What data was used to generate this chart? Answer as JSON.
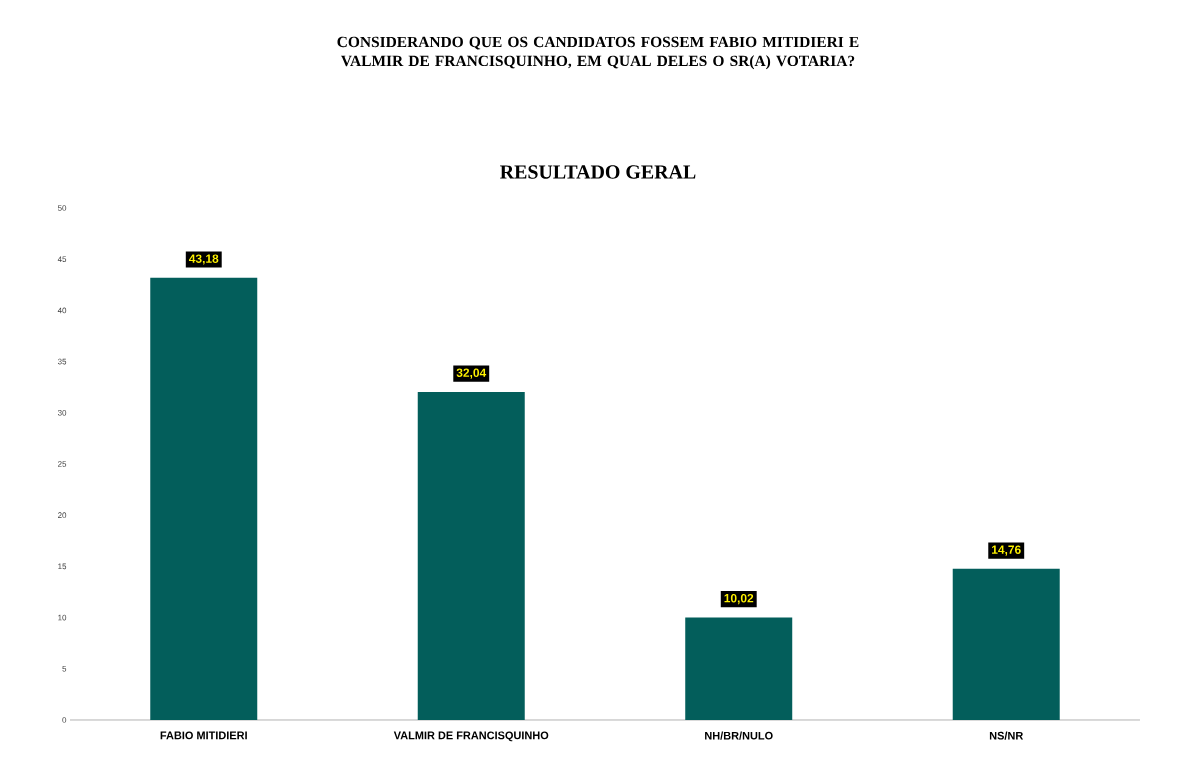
{
  "chart_data": {
    "type": "bar",
    "title": "CONSIDERANDO QUE OS CANDIDATOS FOSSEM FABIO MITIDIERI E VALMIR DE FRANCISQUINHO, EM QUAL DELES O SR(A) VOTARIA?",
    "subtitle": "RESULTADO GERAL",
    "categories": [
      "FABIO MITIDIERI",
      "VALMIR DE FRANCISQUINHO",
      "NH/BR/NULO",
      "NS/NR"
    ],
    "values": [
      43.18,
      32.04,
      10.02,
      14.76
    ],
    "value_labels": [
      "43,18",
      "32,04",
      "10,02",
      "14,76"
    ],
    "color": "#035e5b",
    "ylim": [
      0,
      50
    ],
    "yticks": [
      0,
      5,
      10,
      15,
      20,
      25,
      30,
      35,
      40,
      45,
      50
    ],
    "grid": false
  }
}
